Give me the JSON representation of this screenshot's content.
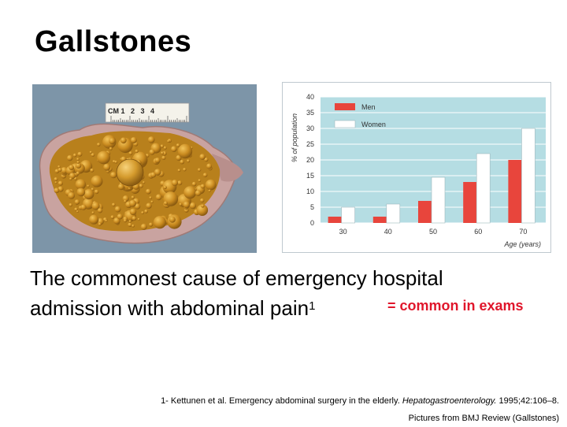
{
  "slide": {
    "title": "Gallstones",
    "body_line1": "The commonest cause of emergency hospital",
    "body_line2": "admission with abdominal pain",
    "body_sup": "1",
    "note": "= common in exams",
    "footer": {
      "ref_pre": "1- Kettunen et al. Emergency abdominal surgery in the elderly. ",
      "ref_journal": "Hepatogastroenterology.",
      "ref_post": " 1995;42:106–8.",
      "credit": "Pictures from BMJ Review (Gallstones)"
    },
    "photo": {
      "ruler_label": "CM 1   2   3   4",
      "background_color": "#7d95a8",
      "stone_color": "#c9881d"
    }
  },
  "chart_data": {
    "type": "bar",
    "categories": [
      "30",
      "40",
      "50",
      "60",
      "70"
    ],
    "series": [
      {
        "name": "Men",
        "values": [
          2,
          2,
          7,
          13,
          20
        ],
        "color": "#e8453c"
      },
      {
        "name": "Women",
        "values": [
          5,
          6,
          14.5,
          22,
          30
        ],
        "color": "#ffffff"
      }
    ],
    "title": "",
    "xlabel": "Age (years)",
    "ylabel": "% of population",
    "ylim": [
      0,
      40
    ],
    "yticks": [
      "0",
      "5",
      "10",
      "15",
      "20",
      "25",
      "30",
      "35",
      "40"
    ],
    "grid": true,
    "legend": "top-left",
    "plot_background": "#b5dde3"
  }
}
